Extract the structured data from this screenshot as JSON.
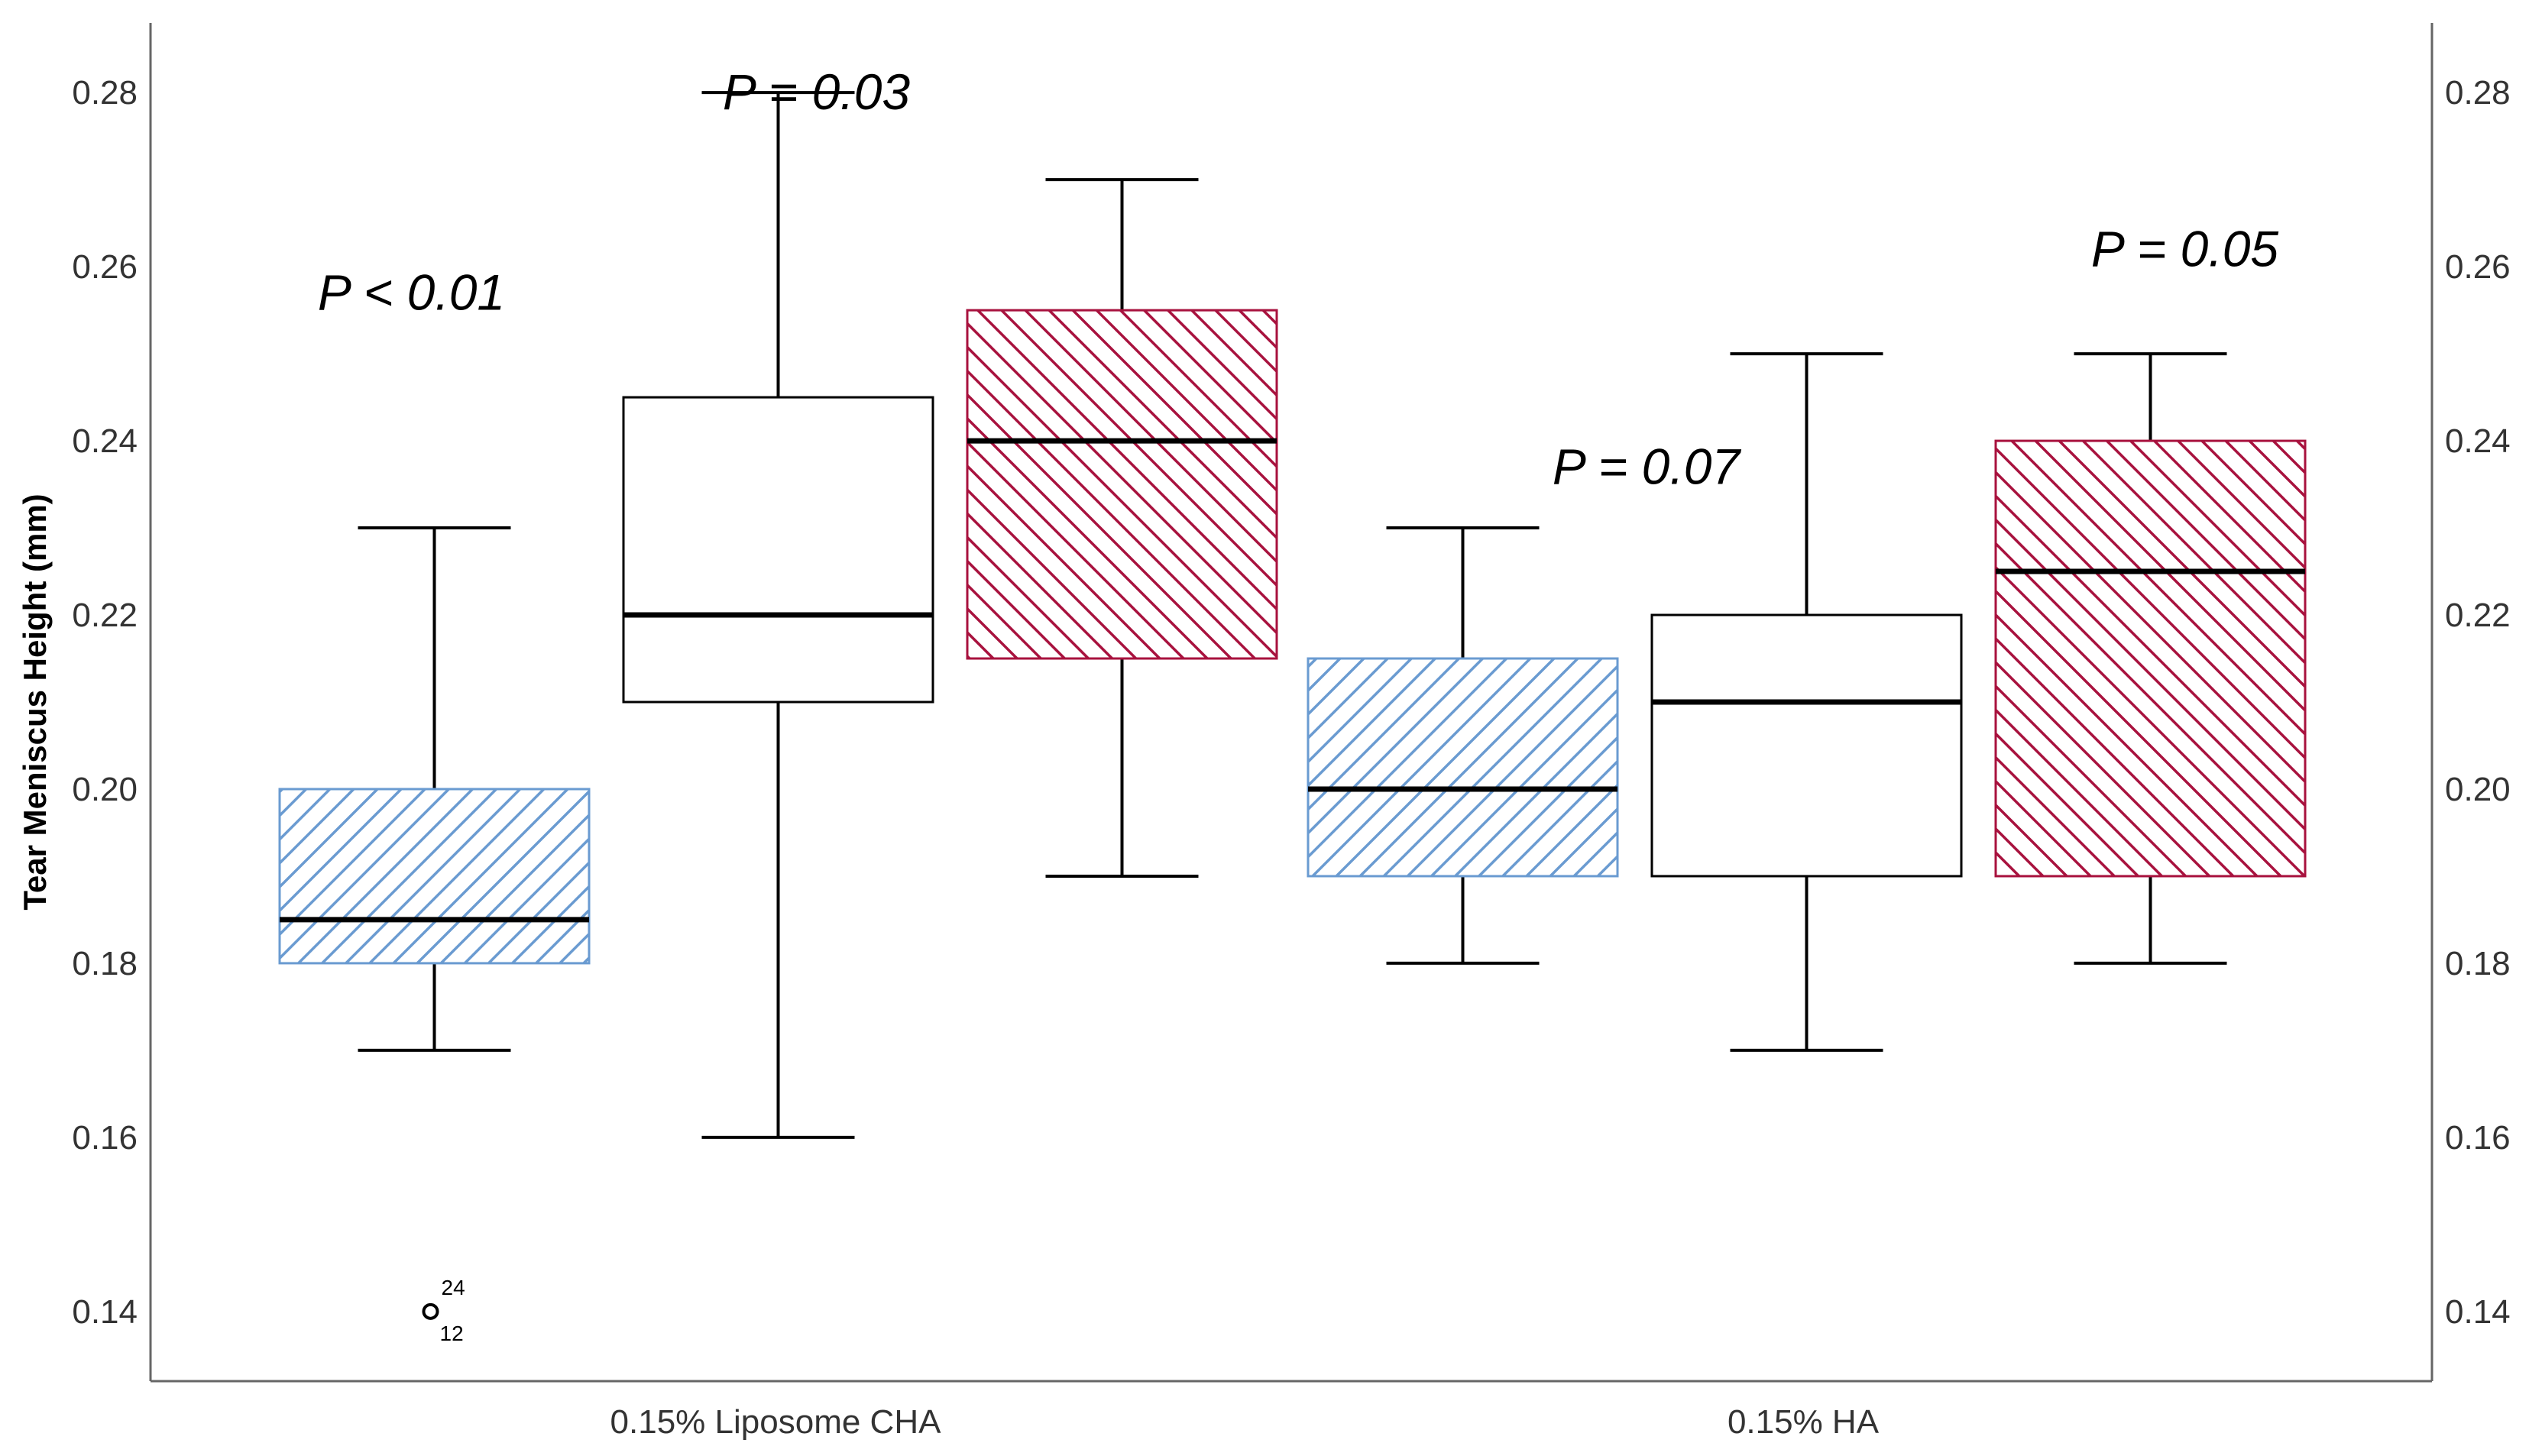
{
  "chart_data": {
    "type": "box",
    "ylabel": "Tear Meniscus Height (mm)",
    "ylim": [
      0.132,
      0.288
    ],
    "yticks": [
      "0.14",
      "0.16",
      "0.18",
      "0.20",
      "0.22",
      "0.24",
      "0.26",
      "0.28"
    ],
    "ytick_values": [
      0.14,
      0.16,
      0.18,
      0.2,
      0.22,
      0.24,
      0.26,
      0.28
    ],
    "right_axis": true,
    "grid": false,
    "categories": [
      "0.15% Liposome CHA",
      "0.15% HA"
    ],
    "boxes": [
      {
        "category": 0,
        "slot": 0,
        "style": "blue-hatch",
        "min": 0.17,
        "q1": 0.18,
        "median": 0.185,
        "q3": 0.2,
        "max": 0.23
      },
      {
        "category": 0,
        "slot": 1,
        "style": "plain",
        "min": 0.16,
        "q1": 0.21,
        "median": 0.22,
        "q3": 0.245,
        "max": 0.28
      },
      {
        "category": 0,
        "slot": 2,
        "style": "red-hatch",
        "min": 0.19,
        "q1": 0.215,
        "median": 0.24,
        "q3": 0.255,
        "max": 0.27
      },
      {
        "category": 1,
        "slot": 0,
        "style": "blue-hatch",
        "min": 0.18,
        "q1": 0.19,
        "median": 0.2,
        "q3": 0.215,
        "max": 0.23
      },
      {
        "category": 1,
        "slot": 1,
        "style": "plain",
        "min": 0.17,
        "q1": 0.19,
        "median": 0.21,
        "q3": 0.22,
        "max": 0.25
      },
      {
        "category": 1,
        "slot": 2,
        "style": "red-hatch",
        "min": 0.18,
        "q1": 0.19,
        "median": 0.225,
        "q3": 0.24,
        "max": 0.25
      }
    ],
    "outliers": [
      {
        "box": 0,
        "value": 0.14,
        "label_top": "24",
        "label_bottom": "12"
      }
    ],
    "annotations": [
      {
        "text": "P < 0.01",
        "value": 0.257,
        "near_box": 0
      },
      {
        "text": "P = 0.03",
        "value": 0.28,
        "near_box": 2
      },
      {
        "text": "P = 0.07",
        "value": 0.237,
        "near_box": 3
      },
      {
        "text": "P = 0.05",
        "value": 0.262,
        "near_box": 5
      }
    ],
    "colors": {
      "blue_hatch": "#6a9bd1",
      "red_hatch": "#a8123e",
      "whisker": "#000000",
      "median": "#000000",
      "plain_box": "#000000",
      "axis": "#666666"
    }
  }
}
